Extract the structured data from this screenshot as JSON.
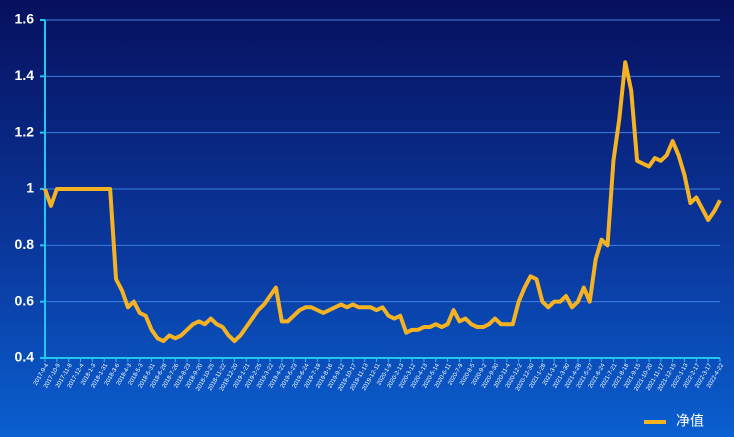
{
  "chart_data": {
    "type": "line",
    "categories": [
      "2017-9-4",
      null,
      "2017-10-9",
      null,
      "2017-11-8",
      null,
      "2017-12-4",
      null,
      "2018-1-3",
      null,
      "2018-1-31",
      null,
      "2018-3-6",
      null,
      "2018-4-3",
      null,
      "2018-5-3",
      null,
      "2018-5-31",
      null,
      "2018-6-28",
      null,
      "2018-7-26",
      null,
      "2018-8-23",
      null,
      "2018-9-20",
      null,
      "2018-10-25",
      null,
      "2018-11-22",
      null,
      "2018-12-20",
      null,
      "2019-1-21",
      null,
      "2019-2-25",
      null,
      "2019-3-22",
      null,
      "2019-4-22",
      null,
      "2019-5-23",
      null,
      "2019-6-24",
      null,
      "2019-7-19",
      null,
      "2019-8-16",
      null,
      "2019-9-12",
      null,
      "2019-10-17",
      null,
      "2019-11-13",
      null,
      "2019-12-11",
      null,
      "2020-1-9",
      null,
      "2020-2-13",
      null,
      "2020-3-12",
      null,
      "2020-4-13",
      null,
      "2020-5-14",
      null,
      "2020-6-11",
      null,
      "2020-7-9",
      null,
      "2020-8-5",
      null,
      "2020-9-2",
      null,
      "2020-9-30",
      null,
      "2020-11-4",
      null,
      "2020-12-2",
      null,
      "2020-12-30",
      null,
      "2021-1-28",
      null,
      "2021-3-2",
      null,
      "2021-3-30",
      null,
      "2021-4-28",
      null,
      "2021-5-27",
      null,
      "2021-6-24",
      null,
      "2021-7-21",
      null,
      "2021-8-18",
      null,
      "2021-9-15",
      null,
      "2021-10-20",
      null,
      "2021-11-17",
      null,
      "2021-12-15",
      null,
      "2022-1-13",
      null,
      "2022-2-17",
      null,
      "2022-3-17",
      null,
      "2022-4-22"
    ],
    "series": [
      {
        "name": "净值",
        "color": "#f5b323",
        "values": [
          1.0,
          0.94,
          1.0,
          1.0,
          1.0,
          1.0,
          1.0,
          1.0,
          1.0,
          1.0,
          1.0,
          1.0,
          0.68,
          0.64,
          0.58,
          0.6,
          0.56,
          0.55,
          0.5,
          0.47,
          0.46,
          0.48,
          0.47,
          0.48,
          0.5,
          0.52,
          0.53,
          0.52,
          0.54,
          0.52,
          0.51,
          0.48,
          0.46,
          0.48,
          0.51,
          0.54,
          0.57,
          0.59,
          0.62,
          0.65,
          0.53,
          0.53,
          0.55,
          0.57,
          0.58,
          0.58,
          0.57,
          0.56,
          0.57,
          0.58,
          0.59,
          0.58,
          0.59,
          0.58,
          0.58,
          0.58,
          0.57,
          0.58,
          0.55,
          0.54,
          0.55,
          0.49,
          0.5,
          0.5,
          0.51,
          0.51,
          0.52,
          0.51,
          0.52,
          0.57,
          0.53,
          0.54,
          0.52,
          0.51,
          0.51,
          0.52,
          0.54,
          0.52,
          0.52,
          0.52,
          0.6,
          0.65,
          0.69,
          0.68,
          0.6,
          0.58,
          0.6,
          0.6,
          0.62,
          0.58,
          0.6,
          0.65,
          0.6,
          0.75,
          0.82,
          0.8,
          1.1,
          1.25,
          1.45,
          1.35,
          1.1,
          1.09,
          1.08,
          1.11,
          1.1,
          1.12,
          1.17,
          1.12,
          1.05,
          0.95,
          0.97,
          0.93,
          0.89,
          0.92,
          0.96
        ]
      }
    ],
    "ylim": [
      0.4,
      1.6
    ],
    "yticks": [
      0.4,
      0.6,
      0.8,
      1,
      1.2,
      1.4,
      1.6
    ],
    "grid": true,
    "legend": "bottom-right"
  }
}
